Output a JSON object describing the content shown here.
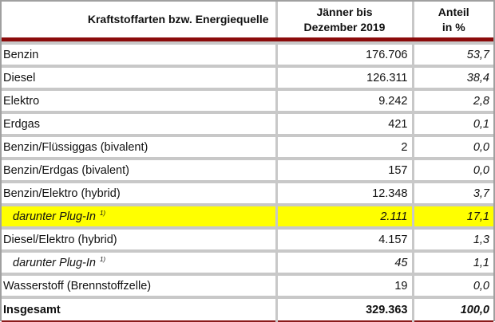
{
  "table": {
    "headers": [
      "Kraftstoffarten bzw. Energiequelle",
      "Jänner bis Dezember 2019",
      "Anteil in %"
    ],
    "header_lines": {
      "col2": [
        "Jänner bis",
        "Dezember 2019"
      ],
      "col3": [
        "Anteil",
        "in %"
      ]
    },
    "rows": [
      {
        "label": "Benzin",
        "value": "176.706",
        "share": "53,7"
      },
      {
        "label": "Diesel",
        "value": "126.311",
        "share": "38,4"
      },
      {
        "label": "Elektro",
        "value": "9.242",
        "share": "2,8"
      },
      {
        "label": "Erdgas",
        "value": "421",
        "share": "0,1"
      },
      {
        "label": "Benzin/Flüssiggas (bivalent)",
        "value": "2",
        "share": "0,0"
      },
      {
        "label": "Benzin/Erdgas (bivalent)",
        "value": "157",
        "share": "0,0"
      },
      {
        "label": "Benzin/Elektro (hybrid)",
        "value": "12.348",
        "share": "3,7"
      },
      {
        "label": "darunter Plug-In",
        "footnote": "1)",
        "value": "2.111",
        "share": "17,1"
      },
      {
        "label": "Diesel/Elektro (hybrid)",
        "value": "4.157",
        "share": "1,3"
      },
      {
        "label": "darunter Plug-In",
        "footnote": "1)",
        "value": "45",
        "share": "1,1"
      },
      {
        "label": "Wasserstoff (Brennstoffzelle)",
        "value": "19",
        "share": "0,0"
      }
    ],
    "total": {
      "label": "Insgesamt",
      "value": "329.363",
      "share": "100,0"
    },
    "colors": {
      "highlight": "#ffff00",
      "rule": "#8b0b0b",
      "grid": "#c8c8c8"
    }
  }
}
